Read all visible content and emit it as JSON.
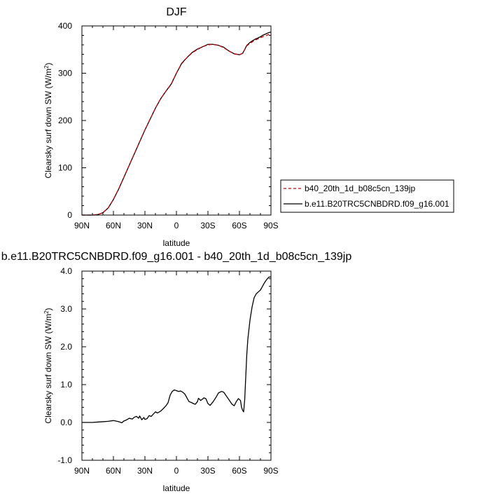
{
  "chart_data": [
    {
      "type": "line",
      "title": "DJF",
      "xlabel": "latitude",
      "ylabel": "Clearsky surf down SW (W/m",
      "ylabel_sup": "2",
      "ylabel_end": ")",
      "xlim": [
        90,
        -90
      ],
      "ylim": [
        0,
        400
      ],
      "x_ticks": [
        90,
        60,
        30,
        0,
        -30,
        -60,
        -90
      ],
      "x_tick_labels": [
        "90N",
        "60N",
        "30N",
        "0",
        "30S",
        "60S",
        "90S"
      ],
      "y_ticks": [
        0,
        100,
        200,
        300,
        400
      ],
      "y_tick_labels": [
        "0",
        "100",
        "200",
        "300",
        "400"
      ],
      "legend_position": "right",
      "grid": false,
      "series": [
        {
          "name": "b40_20th_1d_b08c5cn_139jp",
          "color": "#cc0000",
          "dash": "dashed",
          "x": [
            90,
            85,
            80,
            75,
            70,
            65,
            60,
            55,
            50,
            45,
            40,
            35,
            30,
            25,
            20,
            15,
            10,
            5,
            0,
            -5,
            -10,
            -15,
            -20,
            -25,
            -30,
            -35,
            -40,
            -45,
            -50,
            -55,
            -60,
            -63,
            -65,
            -67,
            -70,
            -72,
            -75,
            -78,
            -80,
            -82,
            -85,
            -88,
            -90
          ],
          "values": [
            0,
            0,
            0,
            1,
            5,
            15,
            33,
            55,
            80,
            105,
            130,
            155,
            180,
            203,
            226,
            246,
            262,
            276,
            300,
            320,
            333,
            343,
            350,
            356,
            360,
            361,
            359,
            354,
            347,
            341,
            339,
            342,
            350,
            358,
            363,
            366,
            370,
            373,
            375,
            377,
            379,
            382,
            383
          ]
        },
        {
          "name": "b.e11.B20TRC5CNBDRD.f09_g16.001",
          "color": "#000000",
          "dash": "solid",
          "x": [
            90,
            85,
            80,
            75,
            70,
            65,
            60,
            55,
            50,
            45,
            40,
            35,
            30,
            25,
            20,
            15,
            10,
            5,
            0,
            -5,
            -10,
            -15,
            -20,
            -25,
            -30,
            -35,
            -40,
            -45,
            -50,
            -55,
            -60,
            -63,
            -65,
            -67,
            -70,
            -72,
            -75,
            -78,
            -80,
            -82,
            -85,
            -88,
            -90
          ],
          "values": [
            0,
            0,
            0,
            1,
            5,
            15,
            33,
            55,
            80,
            105,
            130,
            155,
            180,
            203,
            226,
            246,
            262,
            277,
            300,
            321,
            333,
            344,
            351,
            356,
            361,
            361,
            359,
            355,
            347,
            341,
            339,
            342,
            350,
            359,
            365,
            368,
            372,
            375,
            377,
            380,
            383,
            386,
            387
          ]
        }
      ]
    },
    {
      "type": "line",
      "title": "b.e11.B20TRC5CNBDRD.f09_g16.001 - b40_20th_1d_b08c5cn_139jp",
      "xlabel": "latitude",
      "ylabel": "Clearsky surf down SW (W/m",
      "ylabel_sup": "2",
      "ylabel_end": ")",
      "xlim": [
        90,
        -90
      ],
      "ylim": [
        -1,
        4
      ],
      "x_ticks": [
        90,
        60,
        30,
        0,
        -30,
        -60,
        -90
      ],
      "x_tick_labels": [
        "90N",
        "60N",
        "30N",
        "0",
        "30S",
        "60S",
        "90S"
      ],
      "y_ticks": [
        -1,
        0,
        1,
        2,
        3,
        4
      ],
      "y_tick_labels": [
        "-1.0",
        "0.0",
        "1.0",
        "2.0",
        "3.0",
        "4.0"
      ],
      "grid": false,
      "series": [
        {
          "color": "#000000",
          "dash": "solid",
          "x": [
            90,
            85,
            80,
            75,
            70,
            65,
            60,
            55,
            52,
            50,
            48,
            45,
            42,
            40,
            38,
            36,
            35,
            33,
            31,
            30,
            28,
            26,
            24,
            22,
            20,
            18,
            15,
            12,
            10,
            8,
            6,
            4,
            2,
            0,
            -2,
            -4,
            -6,
            -8,
            -10,
            -12,
            -14,
            -16,
            -18,
            -20,
            -21,
            -23,
            -25,
            -26,
            -28,
            -30,
            -32,
            -35,
            -38,
            -40,
            -43,
            -45,
            -47,
            -50,
            -53,
            -55,
            -57,
            -59,
            -61,
            -62,
            -63,
            -64,
            -65,
            -66,
            -67,
            -68,
            -70,
            -72,
            -74,
            -76,
            -78,
            -80,
            -82,
            -84,
            -86,
            -88,
            -90
          ],
          "values": [
            0.0,
            0.0,
            0.0,
            0.01,
            0.02,
            0.03,
            0.05,
            0.02,
            -0.01,
            0.04,
            0.06,
            0.11,
            0.09,
            0.14,
            0.16,
            0.11,
            0.17,
            0.07,
            0.13,
            0.08,
            0.1,
            0.18,
            0.16,
            0.22,
            0.28,
            0.25,
            0.3,
            0.38,
            0.44,
            0.52,
            0.72,
            0.82,
            0.86,
            0.84,
            0.82,
            0.83,
            0.8,
            0.75,
            0.65,
            0.55,
            0.53,
            0.5,
            0.48,
            0.55,
            0.64,
            0.58,
            0.62,
            0.65,
            0.63,
            0.5,
            0.45,
            0.55,
            0.68,
            0.78,
            0.82,
            0.8,
            0.72,
            0.6,
            0.48,
            0.44,
            0.55,
            0.63,
            0.58,
            0.4,
            0.32,
            0.28,
            0.6,
            1.2,
            1.8,
            2.2,
            2.7,
            3.05,
            3.3,
            3.4,
            3.45,
            3.5,
            3.6,
            3.7,
            3.78,
            3.84,
            3.85
          ]
        }
      ]
    }
  ]
}
